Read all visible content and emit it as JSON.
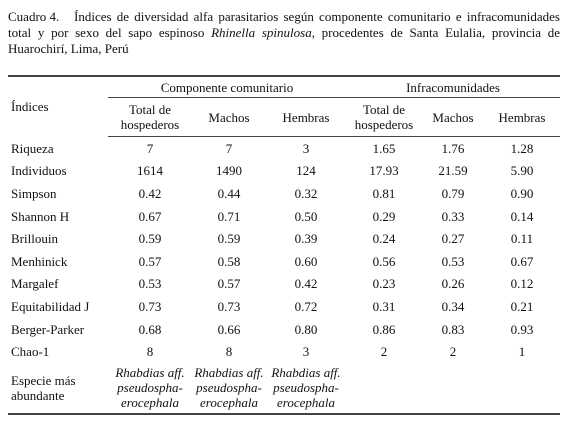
{
  "caption": {
    "label": "Cuadro 4.",
    "text": "Índices de diversidad alfa parasitarios según componente comunitario e infracomunidades total y por sexo del sapo espinoso ",
    "species": "Rhinella spinulosa",
    "text_end": ", procedentes de Santa Eulalia, provincia de Huarochirí, Lima, Perú"
  },
  "table": {
    "header": {
      "indices": "Índices",
      "groups": [
        "Componente comunitario",
        "Infracomunidades"
      ],
      "columns": [
        "Total de hospederos",
        "Machos",
        "Hembras",
        "Total de hospederos",
        "Machos",
        "Hembras"
      ]
    },
    "rows": [
      [
        "Riqueza",
        "7",
        "7",
        "3",
        "1.65",
        "1.76",
        "1.28"
      ],
      [
        "Individuos",
        "1614",
        "1490",
        "124",
        "17.93",
        "21.59",
        "5.90"
      ],
      [
        "Simpson",
        "0.42",
        "0.44",
        "0.32",
        "0.81",
        "0.79",
        "0.90"
      ],
      [
        "Shannon H",
        "0.67",
        "0.71",
        "0.50",
        "0.29",
        "0.33",
        "0.14"
      ],
      [
        "Brillouin",
        "0.59",
        "0.59",
        "0.39",
        "0.24",
        "0.27",
        "0.11"
      ],
      [
        "Menhinick",
        "0.57",
        "0.58",
        "0.60",
        "0.56",
        "0.53",
        "0.67"
      ],
      [
        "Margalef",
        "0.53",
        "0.57",
        "0.42",
        "0.23",
        "0.26",
        "0.12"
      ],
      [
        "Equitabilidad J",
        "0.73",
        "0.73",
        "0.72",
        "0.31",
        "0.34",
        "0.21"
      ],
      [
        "Berger-Parker",
        "0.68",
        "0.66",
        "0.80",
        "0.86",
        "0.83",
        "0.93"
      ],
      [
        "Chao-1",
        "8",
        "8",
        "3",
        "2",
        "2",
        "1"
      ]
    ],
    "last_row": {
      "label": "Especie más abundante",
      "cells": [
        [
          "Rhabdias aff.",
          "pseudospha-",
          "erocephala"
        ],
        [
          "Rhabdias aff.",
          "pseudospha-",
          "erocephala"
        ],
        [
          "Rhabdias aff.",
          "pseudospha-",
          "erocephala"
        ]
      ]
    }
  }
}
